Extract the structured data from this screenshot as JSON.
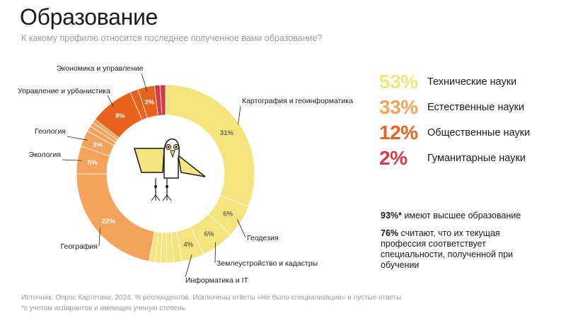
{
  "header": {
    "title": "Образование",
    "subtitle": "К какому профилю относится последнее полученное вами образование?"
  },
  "chart_data": {
    "type": "pie",
    "categories": [
      "Картография и геоинформатика",
      "Геодезия",
      "Землеустройство и кадастры",
      "Информатика и IT",
      "",
      "",
      "",
      "",
      "",
      "География",
      "Экология",
      "Геология",
      "",
      "",
      "",
      "Управление и урбанистика",
      "",
      "Экономика и управление",
      "",
      ""
    ],
    "values": [
      31,
      6,
      6,
      4,
      1.5,
      1.3,
      1.1,
      1,
      1.1,
      22,
      5,
      3,
      1,
      0.8,
      0.7,
      8,
      1.5,
      3,
      1,
      1
    ],
    "data_labels": [
      "31%",
      "6%",
      "6%",
      "4%",
      "",
      "",
      "",
      "",
      "",
      "22%",
      "5%",
      "3%",
      "",
      "",
      "",
      "8%",
      "",
      "3%",
      "",
      ""
    ],
    "colors": [
      "#f4e47e",
      "#f4e47e",
      "#f4e47e",
      "#f4e47e",
      "#f4e47e",
      "#f4e47e",
      "#f4e47e",
      "#f4e47e",
      "#f4e47e",
      "#f3a35b",
      "#f3a35b",
      "#f3a35b",
      "#f3a35b",
      "#f3a35b",
      "#f3a35b",
      "#e8621c",
      "#e8621c",
      "#e8621c",
      "#d23c46",
      "#d23c46"
    ]
  },
  "legend": [
    {
      "pct": "53%",
      "label": "Технические науки",
      "color": "#f4e47e"
    },
    {
      "pct": "33%",
      "label": "Естественные науки",
      "color": "#f3a35b"
    },
    {
      "pct": "12%",
      "label": "Общественные науки",
      "color": "#e8621c"
    },
    {
      "pct": "2%",
      "label": "Гуманитарные науки",
      "color": "#d23c46"
    }
  ],
  "notes": {
    "note1_bold": "93%*",
    "note1_text": " имеют высшее образование",
    "note2_bold": "76%",
    "note2_text": " считают, что их текущая профессия соответствует специальности, полученной при обучении"
  },
  "footer": {
    "source": "Источник: Опрос Картетики, 2024. % респондентов. Исключены ответы «Не было специализации» и пустые ответы",
    "footnote": "*с учетом аспирантов и имеющих ученую степень"
  },
  "mascot_icon": "bird-icon"
}
